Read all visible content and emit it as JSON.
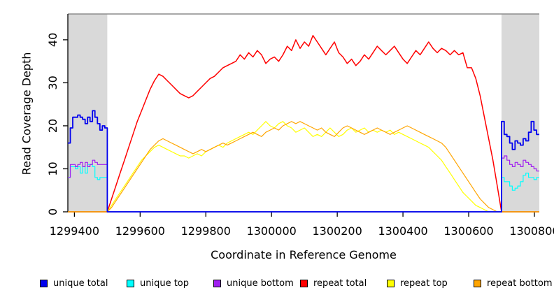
{
  "chart_data": {
    "type": "line",
    "title": "",
    "xlabel": "Coordinate in Reference Genome",
    "ylabel": "Read Coverage Depth",
    "xlim": [
      1299380,
      1300815
    ],
    "ylim": [
      0,
      46
    ],
    "xticks": [
      1299400,
      1299600,
      1299800,
      1300000,
      1300200,
      1300400,
      1300600,
      1300800
    ],
    "yticks": [
      0,
      10,
      20,
      30,
      40
    ],
    "grid": false,
    "legend_position": "bottom",
    "colors": {
      "background": "#ffffff",
      "shaded_region": "#d9d9d9",
      "frame_top": "#8c8c8c",
      "axis": "#000000"
    },
    "shaded_regions": [
      {
        "x0": 1299380,
        "x1": 1299500
      },
      {
        "x0": 1300700,
        "x1": 1300815
      }
    ],
    "draw_order": [
      3,
      4,
      5,
      1,
      2,
      0
    ],
    "series": [
      {
        "name": "unique total",
        "color": "#0000ee",
        "style": "step",
        "lwd": 1.8,
        "segments": [
          {
            "x0": 1299380,
            "x1": 1299500,
            "values": [
              16,
              19.5,
              22,
              22,
              22.5,
              22,
              21.5,
              20.5,
              22,
              21,
              23.5,
              22,
              20.5,
              19,
              20,
              19.5
            ]
          },
          {
            "x0": 1299500,
            "x1": 1300700,
            "values": [
              0
            ]
          },
          {
            "x0": 1300700,
            "x1": 1300815,
            "values": [
              21,
              18,
              17.5,
              16,
              14.5,
              16.5,
              16,
              15.5,
              17,
              16.5,
              18.5,
              21,
              19,
              18
            ]
          }
        ]
      },
      {
        "name": "unique top",
        "color": "#00ffff",
        "style": "step",
        "lwd": 1.2,
        "segments": [
          {
            "x0": 1299380,
            "x1": 1299500,
            "values": [
              8,
              10.5,
              10.5,
              10,
              10.5,
              9,
              10.5,
              9,
              11,
              11,
              10.5,
              8,
              7.5,
              8,
              8,
              8
            ]
          },
          {
            "x0": 1299500,
            "x1": 1300700,
            "values": [
              0
            ]
          },
          {
            "x0": 1300700,
            "x1": 1300815,
            "values": [
              8,
              7,
              7,
              6,
              5,
              5.5,
              6,
              7,
              8.5,
              9,
              8,
              8,
              7.5,
              8
            ]
          }
        ]
      },
      {
        "name": "unique bottom",
        "color": "#a020f0",
        "style": "step",
        "lwd": 1.2,
        "segments": [
          {
            "x0": 1299380,
            "x1": 1299500,
            "values": [
              8,
              11,
              11,
              10.5,
              11,
              11.5,
              10.5,
              11.5,
              10.5,
              11,
              12,
              11.5,
              11,
              11,
              11,
              11
            ]
          },
          {
            "x0": 1299500,
            "x1": 1300700,
            "values": [
              0
            ]
          },
          {
            "x0": 1300700,
            "x1": 1300815,
            "values": [
              12.5,
              13,
              12,
              11,
              10.5,
              11.5,
              11,
              10.5,
              12,
              11.5,
              11,
              10.5,
              10,
              9.5
            ]
          }
        ]
      },
      {
        "name": "repeat total",
        "color": "#ff0000",
        "style": "line",
        "lwd": 1.5,
        "segments": [
          {
            "x0": 1299380,
            "x1": 1299500,
            "values": [
              0,
              0
            ]
          },
          {
            "x0": 1299500,
            "x1": 1300700,
            "values": [
              0,
              3,
              6,
              9,
              12,
              15,
              18,
              21,
              23.5,
              26,
              28.5,
              30.5,
              32,
              31.5,
              30.5,
              29.5,
              28.5,
              27.5,
              27,
              26.5,
              27,
              28,
              29,
              30,
              31,
              31.5,
              32.5,
              33.5,
              34,
              34.5,
              35,
              36.5,
              35.5,
              37,
              36,
              37.5,
              36.5,
              34.5,
              35.5,
              36,
              35,
              36.5,
              38.5,
              37.5,
              40,
              38,
              39.5,
              38.5,
              41,
              39.5,
              38,
              36.5,
              38,
              39.5,
              37,
              36,
              34.5,
              35.5,
              34,
              35,
              36.5,
              35.5,
              37,
              38.5,
              37.5,
              36.5,
              37.5,
              38.5,
              37,
              35.5,
              34.5,
              36,
              37.5,
              36.5,
              38,
              39.5,
              38,
              37,
              38,
              37.5,
              36.5,
              37.5,
              36.5,
              37,
              33.5,
              33.5,
              31,
              27,
              22,
              17,
              12,
              6,
              0
            ]
          },
          {
            "x0": 1300700,
            "x1": 1300815,
            "values": [
              0,
              0
            ]
          }
        ]
      },
      {
        "name": "repeat top",
        "color": "#ffff00",
        "style": "line",
        "lwd": 1.2,
        "segments": [
          {
            "x0": 1299380,
            "x1": 1299500,
            "values": [
              0,
              0
            ]
          },
          {
            "x0": 1299500,
            "x1": 1300700,
            "values": [
              0,
              1.5,
              3,
              4.5,
              6,
              7.5,
              9,
              10.5,
              12,
              13,
              14,
              15,
              15.5,
              15,
              14.5,
              14,
              13.5,
              13,
              13,
              12.5,
              13,
              13.5,
              13,
              14,
              14.5,
              15,
              15.5,
              15,
              16,
              16.5,
              17,
              17.5,
              18,
              18.5,
              18,
              19,
              20,
              21,
              20,
              19.5,
              20.5,
              21,
              20,
              19.5,
              18.5,
              19,
              19.5,
              18.5,
              17.5,
              18,
              17.5,
              18.5,
              19.5,
              18.5,
              17.5,
              18,
              19,
              19.5,
              18.5,
              19,
              19.5,
              18.5,
              19,
              18.5,
              19,
              18.5,
              19,
              18,
              18.5,
              18,
              17.5,
              17,
              16.5,
              16,
              15.5,
              15,
              14,
              13,
              12,
              10.5,
              9,
              7.5,
              6,
              4.5,
              3.5,
              2.5,
              1.5,
              1,
              0.5,
              0,
              0,
              0,
              0
            ]
          },
          {
            "x0": 1300700,
            "x1": 1300815,
            "values": [
              0,
              0
            ]
          }
        ]
      },
      {
        "name": "repeat bottom",
        "color": "#ffa500",
        "style": "line",
        "lwd": 1.2,
        "segments": [
          {
            "x0": 1299380,
            "x1": 1299500,
            "values": [
              0,
              0
            ]
          },
          {
            "x0": 1299500,
            "x1": 1300700,
            "values": [
              0,
              1,
              2.5,
              4,
              5.5,
              7,
              8.5,
              10,
              11.5,
              13,
              14.5,
              15.5,
              16.5,
              17,
              16.5,
              16,
              15.5,
              15,
              14.5,
              14,
              13.5,
              14,
              14.5,
              14,
              14.5,
              15,
              15.5,
              16,
              15.5,
              16,
              16.5,
              17,
              17.5,
              18,
              18.5,
              18,
              17.5,
              18.5,
              19,
              19.5,
              19,
              20,
              20.5,
              21,
              20.5,
              21,
              20.5,
              20,
              19.5,
              19,
              19.5,
              18.5,
              18,
              17.5,
              18.5,
              19.5,
              20,
              19.5,
              19,
              18.5,
              18,
              18.5,
              19,
              19.5,
              19,
              18.5,
              18,
              18.5,
              19,
              19.5,
              20,
              19.5,
              19,
              18.5,
              18,
              17.5,
              17,
              16.5,
              16,
              15,
              13.5,
              12,
              10.5,
              9,
              7.5,
              6,
              4.5,
              3,
              2,
              1,
              0.5,
              0,
              0
            ]
          },
          {
            "x0": 1300700,
            "x1": 1300815,
            "values": [
              0,
              0
            ]
          }
        ]
      }
    ]
  }
}
